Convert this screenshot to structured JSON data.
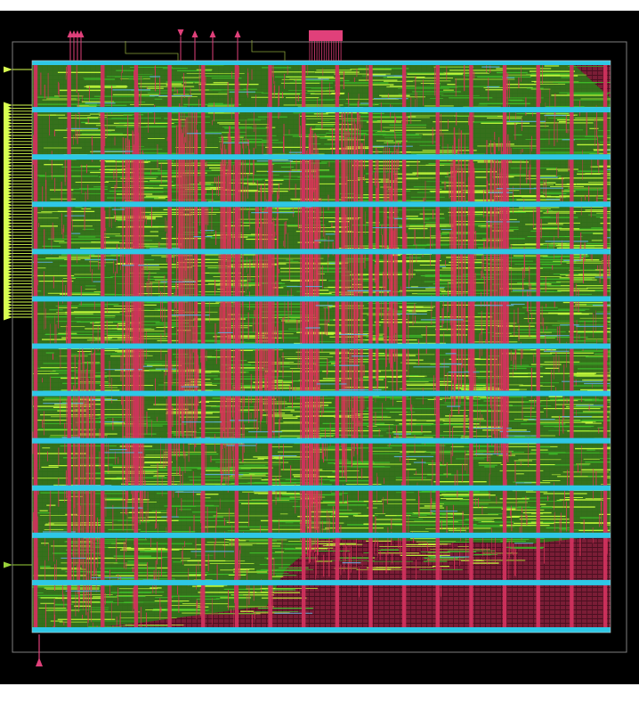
{
  "colors": {
    "page_background": "#ffffff",
    "canvas_background": "#000000",
    "die_outline": "#7f7f7f",
    "power_rail_horizontal": "#2ec8e6",
    "power_strap_vertical": "#d0315e",
    "metal_routing_green": "#3fbf2a",
    "metal_routing_yellow": "#c8ff3c",
    "metal_routing_red": "#e0325a",
    "empty_core_rows": "#5a1428",
    "io_pin_yellow": "#d8ff50",
    "io_pin_pink": "#e0407a"
  },
  "view": {
    "type": "placed-and-routed chip layout",
    "horizontal_power_rails": 13,
    "vertical_power_straps": 18,
    "top_pin_groups": [
      "pin-cluster-left",
      "pin-single",
      "pin-single",
      "pin-single",
      "pin-single",
      "pin-cluster-right"
    ],
    "left_pin_band": "dense",
    "bottom_pins": 1
  }
}
